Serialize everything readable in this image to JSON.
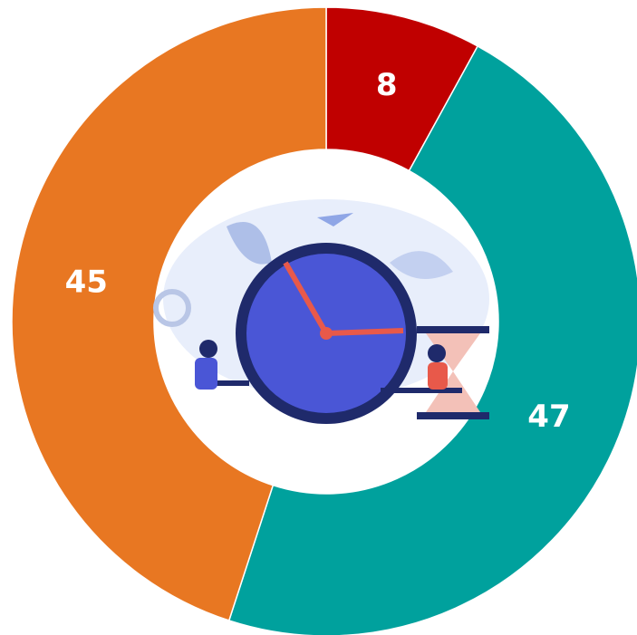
{
  "chart_data": {
    "type": "pie",
    "values": [
      8,
      47,
      45
    ],
    "colors": [
      "#c00000",
      "#00a19d",
      "#e87722"
    ]
  }
}
